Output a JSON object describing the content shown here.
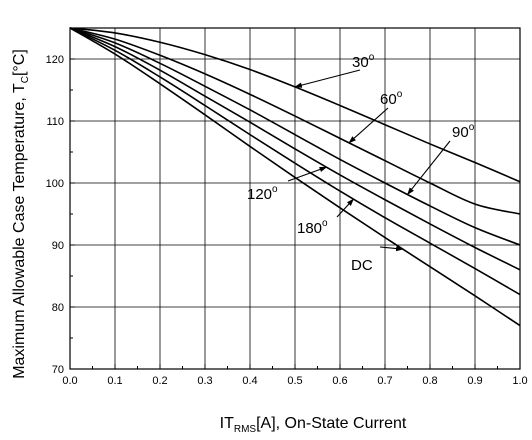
{
  "chart_data": {
    "type": "line",
    "xlabel": {
      "main": "IT",
      "sub": "RMS",
      "rest": "[A], On-State Current"
    },
    "ylabel": {
      "main": "Maximum Allowable Case Temperature, T",
      "sub": "C",
      "rest": "[°C]"
    },
    "xlim": [
      0.0,
      1.0
    ],
    "ylim": [
      70,
      125
    ],
    "x_ticks": [
      "0.0",
      "0.1",
      "0.2",
      "0.3",
      "0.4",
      "0.5",
      "0.6",
      "0.7",
      "0.8",
      "0.9",
      "1.0"
    ],
    "y_ticks": [
      "70",
      "80",
      "90",
      "100",
      "110",
      "120"
    ],
    "grid": true,
    "series": [
      {
        "name": "30°",
        "x": [
          0.0,
          0.1,
          0.2,
          0.3,
          0.4,
          0.5,
          0.6,
          0.7,
          0.8,
          0.9,
          1.0
        ],
        "y": [
          125,
          124.2,
          122.7,
          120.7,
          118.3,
          115.5,
          112.5,
          109.4,
          106.3,
          103.3,
          100.2
        ]
      },
      {
        "name": "60°",
        "x": [
          0.0,
          0.1,
          0.2,
          0.3,
          0.4,
          0.5,
          0.6,
          0.7,
          0.8,
          0.9,
          1.0
        ],
        "y": [
          125,
          123.2,
          120.6,
          117.6,
          114.3,
          110.8,
          107.2,
          103.6,
          100.0,
          96.6,
          95.0
        ]
      },
      {
        "name": "90°",
        "x": [
          0.0,
          0.1,
          0.2,
          0.3,
          0.4,
          0.5,
          0.6,
          0.7,
          0.8,
          0.9,
          1.0
        ],
        "y": [
          125,
          122.6,
          119.3,
          115.6,
          111.8,
          107.8,
          103.8,
          100.0,
          96.3,
          92.8,
          90.0
        ]
      },
      {
        "name": "120°",
        "x": [
          0.0,
          0.1,
          0.2,
          0.3,
          0.4,
          0.5,
          0.6,
          0.7,
          0.8,
          0.9,
          1.0
        ],
        "y": [
          125,
          122.0,
          118.2,
          114.0,
          109.8,
          105.5,
          101.3,
          97.3,
          93.4,
          89.6,
          86.0
        ]
      },
      {
        "name": "180°",
        "x": [
          0.0,
          0.1,
          0.2,
          0.3,
          0.4,
          0.5,
          0.6,
          0.7,
          0.8,
          0.9,
          1.0
        ],
        "y": [
          125,
          121.4,
          117.1,
          112.5,
          107.8,
          103.2,
          98.7,
          94.4,
          90.3,
          86.2,
          82.0
        ]
      },
      {
        "name": "DC",
        "x": [
          0.0,
          0.1,
          0.2,
          0.3,
          0.4,
          0.5,
          0.6,
          0.7,
          0.8,
          0.9,
          1.0
        ],
        "y": [
          125,
          120.8,
          116.0,
          111.0,
          105.9,
          100.9,
          96.0,
          91.2,
          86.5,
          81.8,
          77.0
        ]
      }
    ],
    "annotations": [
      {
        "label": "30",
        "deg": "o",
        "series": "30°"
      },
      {
        "label": "60",
        "deg": "o",
        "series": "60°"
      },
      {
        "label": "90",
        "deg": "o",
        "series": "90°"
      },
      {
        "label": "120",
        "deg": "o",
        "series": "120°"
      },
      {
        "label": "180",
        "deg": "o",
        "series": "180°"
      },
      {
        "label": "DC",
        "deg": "",
        "series": "DC"
      }
    ]
  }
}
